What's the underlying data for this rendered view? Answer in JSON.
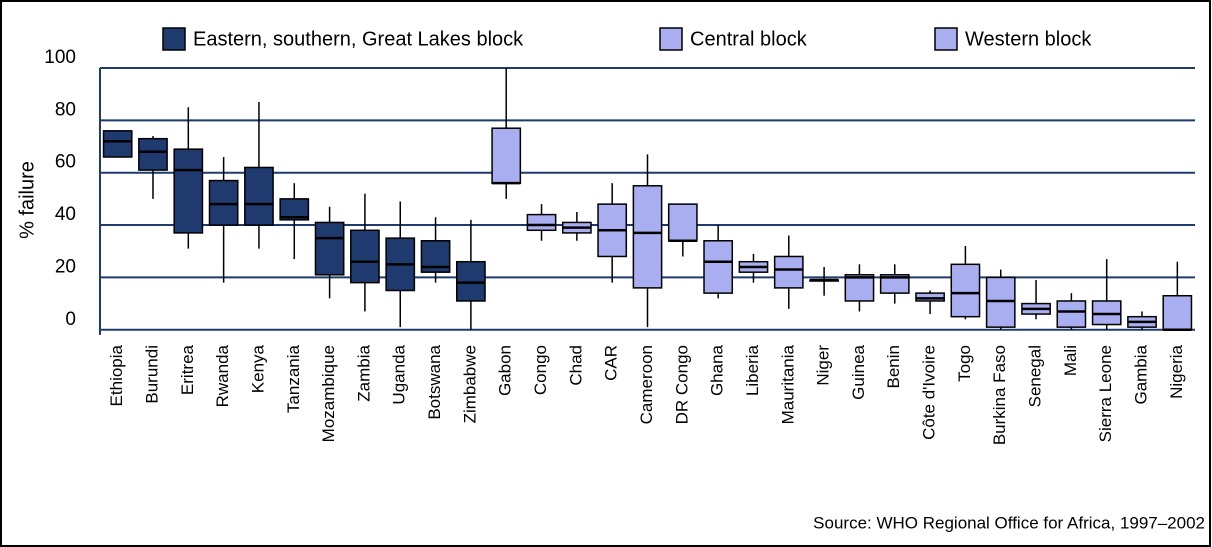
{
  "chart_data": {
    "type": "box",
    "y_label": "% failure",
    "source": "Source: WHO Regional Office for Africa, 1997–2002",
    "ylim": [
      -2,
      100
    ],
    "yticks": [
      0,
      20,
      40,
      60,
      80,
      100
    ],
    "grid": true,
    "series": [
      {
        "name": "Eastern, southern, Great Lakes block",
        "color": "#1f3a6e",
        "categories": [
          "Ethiopia",
          "Burundi",
          "Eritrea",
          "Rwanda",
          "Kenya",
          "Tanzania",
          "Mozambique",
          "Zambia",
          "Uganda",
          "Botswana",
          "Zimbabwe"
        ],
        "low": [
          66,
          50,
          31,
          18,
          31,
          27,
          12,
          7,
          1,
          18,
          0
        ],
        "q1": [
          66,
          61,
          37,
          40,
          40,
          42,
          21,
          18,
          15,
          22,
          11
        ],
        "median": [
          72,
          68,
          61,
          48,
          48,
          43,
          35,
          26,
          25,
          24,
          18
        ],
        "q3": [
          76,
          73,
          69,
          57,
          62,
          50,
          41,
          38,
          35,
          34,
          26
        ],
        "high": [
          76,
          74,
          85,
          66,
          87,
          56,
          47,
          52,
          49,
          43,
          42
        ]
      },
      {
        "name": "Central block",
        "color": "#a9aef0",
        "categories": [
          "Gabon",
          "Congo",
          "Chad",
          "CAR",
          "Cameroon",
          "DR Congo"
        ],
        "low": [
          50,
          34,
          34,
          18,
          1,
          28
        ],
        "q1": [
          56,
          38,
          37,
          28,
          16,
          34
        ],
        "median": [
          56,
          40,
          39,
          38,
          37,
          34
        ],
        "q3": [
          77,
          44,
          41,
          48,
          55,
          48
        ],
        "high": [
          100,
          48,
          45,
          56,
          67,
          48
        ]
      },
      {
        "name": "Western block",
        "color": "#a9aef0",
        "categories": [
          "Ghana",
          "Liberia",
          "Mauritania",
          "Niger",
          "Guinea",
          "Benin",
          "Côte d'Ivoire",
          "Togo",
          "Burkina Faso",
          "Senegal",
          "Mali",
          "Sierra Leone",
          "Gambia",
          "Nigeria"
        ],
        "low": [
          12,
          18,
          8,
          13,
          7,
          10,
          6,
          4,
          0,
          4,
          0,
          0,
          0,
          0
        ],
        "q1": [
          14,
          22,
          16,
          19,
          11,
          14,
          11,
          5,
          1,
          6,
          1,
          2,
          1,
          0
        ],
        "median": [
          26,
          24,
          23,
          19,
          20,
          20,
          12,
          14,
          11,
          8,
          7,
          6,
          3,
          0
        ],
        "q3": [
          34,
          26,
          28,
          19,
          21,
          21,
          14,
          25,
          20,
          10,
          11,
          11,
          5,
          13
        ],
        "high": [
          40,
          29,
          36,
          24,
          25,
          25,
          15,
          32,
          23,
          19,
          14,
          27,
          7,
          26
        ]
      }
    ]
  }
}
